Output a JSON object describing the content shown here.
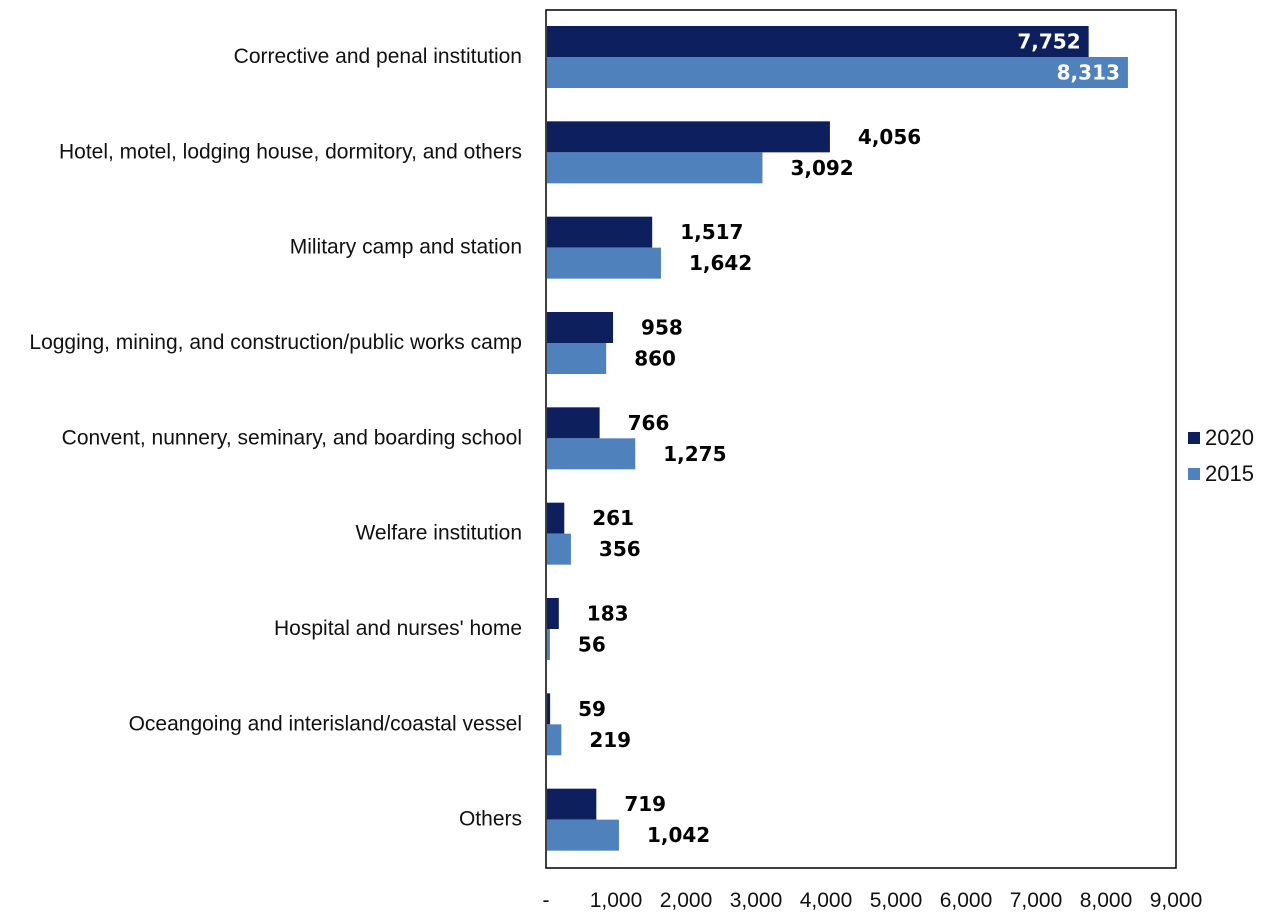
{
  "chart_data": {
    "type": "bar",
    "orientation": "horizontal",
    "categories": [
      "Corrective and penal institution",
      "Hotel, motel, lodging house, dormitory, and others",
      "Military camp and station",
      "Logging, mining, and construction/public works camp",
      "Convent, nunnery, seminary, and boarding school",
      "Welfare institution",
      "Hospital and nurses' home",
      "Oceangoing and interisland/coastal vessel",
      "Others"
    ],
    "series": [
      {
        "name": "2020",
        "color": "#0d1f5c",
        "values": [
          7752,
          4056,
          1517,
          958,
          766,
          261,
          183,
          59,
          719
        ],
        "labels": [
          "7,752",
          "4,056",
          "1,517",
          "958",
          "766",
          "261",
          "183",
          "59",
          "719"
        ]
      },
      {
        "name": "2015",
        "color": "#4f81bd",
        "values": [
          8313,
          3092,
          1642,
          860,
          1275,
          356,
          56,
          219,
          1042
        ],
        "labels": [
          "8,313",
          "3,092",
          "1,642",
          "860",
          "1,275",
          "356",
          "56",
          "219",
          "1,042"
        ]
      }
    ],
    "xlim": [
      0,
      9000
    ],
    "xticks": [
      0,
      1000,
      2000,
      3000,
      4000,
      5000,
      6000,
      7000,
      8000,
      9000
    ],
    "xtick_labels": [
      "-",
      "1,000",
      "2,000",
      "3,000",
      "4,000",
      "5,000",
      "6,000",
      "7,000",
      "8,000",
      "9,000"
    ],
    "legend_position": "right",
    "grid": false
  }
}
